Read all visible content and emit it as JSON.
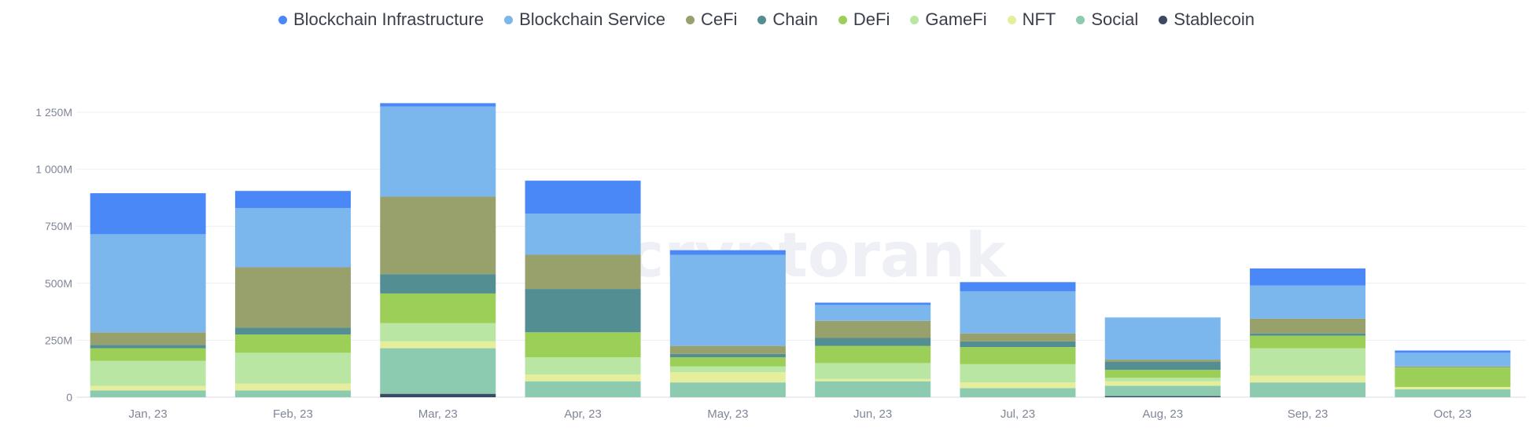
{
  "chart_data": {
    "type": "bar",
    "stacked": true,
    "title": "",
    "xlabel": "",
    "ylabel": "",
    "categories": [
      "Jan, 23",
      "Feb, 23",
      "Mar, 23",
      "Apr, 23",
      "May, 23",
      "Jun, 23",
      "Jul, 23",
      "Aug, 23",
      "Sep, 23",
      "Oct, 23"
    ],
    "y_ticks": [
      {
        "value": 0,
        "label": "0"
      },
      {
        "value": 250,
        "label": "250M"
      },
      {
        "value": 500,
        "label": "500M"
      },
      {
        "value": 750,
        "label": "750M"
      },
      {
        "value": 1000,
        "label": "1 000M"
      },
      {
        "value": 1250,
        "label": "1 250M"
      }
    ],
    "ylim": [
      0,
      1250
    ],
    "grid": true,
    "legend_position": "top",
    "watermark": "cryptorank",
    "series": [
      {
        "name": "Stablecoin",
        "color": "#3b4a63",
        "values": [
          0,
          0,
          15,
          0,
          0,
          0,
          0,
          5,
          0,
          0
        ]
      },
      {
        "name": "Social",
        "color": "#8ccbb0",
        "values": [
          30,
          30,
          200,
          70,
          65,
          70,
          40,
          45,
          65,
          35
        ]
      },
      {
        "name": "NFT",
        "color": "#e5ee9c",
        "values": [
          20,
          30,
          30,
          30,
          45,
          10,
          25,
          20,
          30,
          10
        ]
      },
      {
        "name": "GameFi",
        "color": "#b9e6a2",
        "values": [
          110,
          135,
          80,
          75,
          25,
          70,
          80,
          15,
          120,
          0
        ]
      },
      {
        "name": "DeFi",
        "color": "#9ccf58",
        "values": [
          55,
          80,
          130,
          110,
          40,
          75,
          75,
          35,
          55,
          85
        ]
      },
      {
        "name": "Chain",
        "color": "#528e92",
        "values": [
          15,
          30,
          85,
          190,
          15,
          35,
          25,
          35,
          10,
          0
        ]
      },
      {
        "name": "CeFi",
        "color": "#98a06c",
        "values": [
          55,
          265,
          340,
          150,
          35,
          75,
          35,
          10,
          65,
          5
        ]
      },
      {
        "name": "Blockchain Service",
        "color": "#7bb6ec",
        "values": [
          430,
          260,
          395,
          180,
          400,
          70,
          185,
          185,
          145,
          60
        ]
      },
      {
        "name": "Blockchain Infrastructure",
        "color": "#4a88f8",
        "values": [
          180,
          75,
          15,
          145,
          20,
          10,
          40,
          0,
          75,
          10
        ]
      }
    ]
  }
}
